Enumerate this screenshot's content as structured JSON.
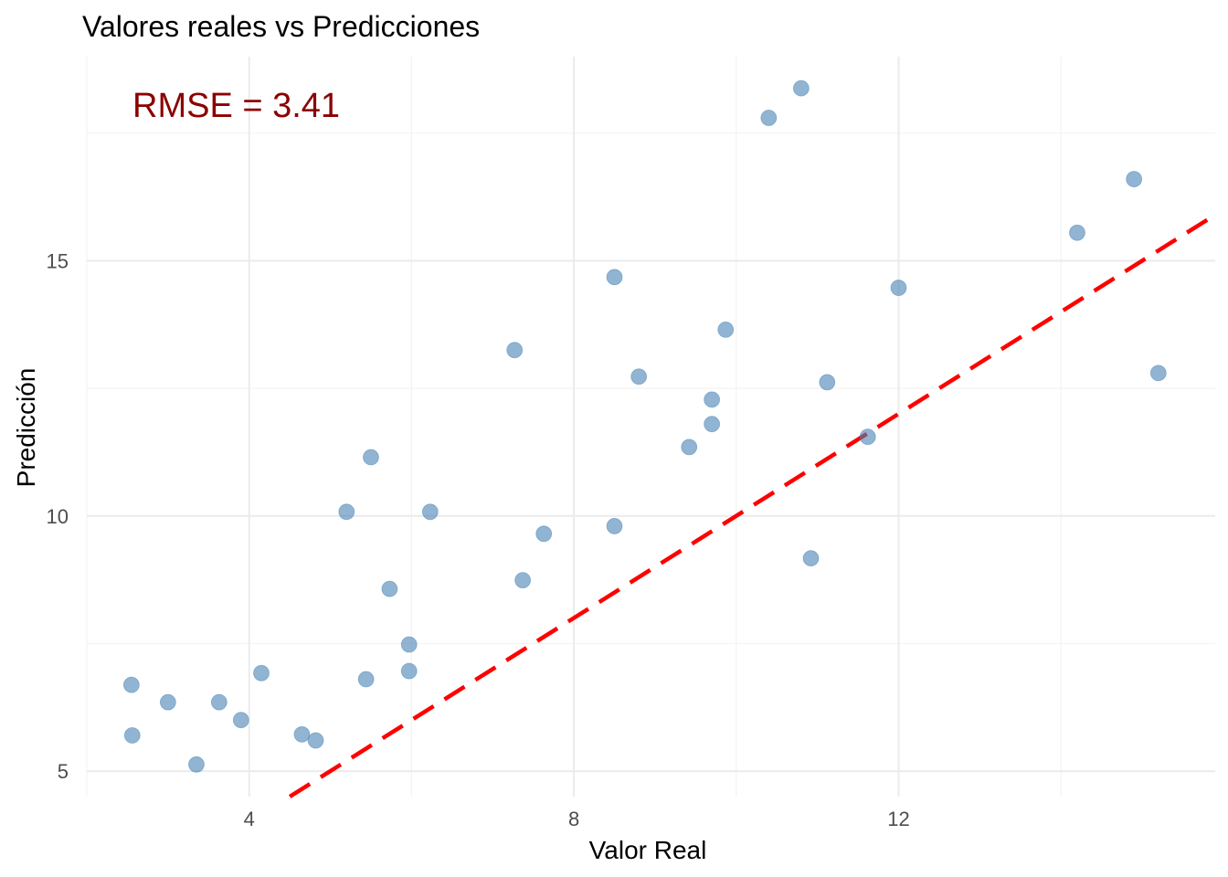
{
  "chart_data": {
    "type": "scatter",
    "title": "Valores reales vs Predicciones",
    "xlabel": "Valor Real",
    "ylabel": "Predicción",
    "xlim": [
      2.0,
      15.9
    ],
    "ylim": [
      4.5,
      19.0
    ],
    "x_ticks": [
      4,
      8,
      12
    ],
    "y_ticks": [
      5,
      10,
      15
    ],
    "grid": true,
    "annotation": {
      "text": "RMSE = 3.41",
      "color": "#8b0000"
    },
    "reference_line": {
      "type": "identity",
      "slope": 1,
      "intercept": 0,
      "color": "#ff0000",
      "style": "dashed"
    },
    "point_color": "#4682b4",
    "series": [
      {
        "x": [
          2.55,
          2.56,
          3.0,
          3.35,
          3.63,
          3.9,
          4.15,
          4.65,
          4.82,
          5.2,
          5.5,
          5.44,
          5.73,
          5.97,
          5.97,
          6.23,
          7.27,
          7.37,
          7.63,
          8.5,
          8.5,
          8.8,
          9.42,
          9.7,
          9.7,
          9.87,
          10.4,
          10.8,
          10.92,
          11.12,
          11.62,
          12.0,
          14.2,
          14.9,
          15.2
        ],
        "y": [
          6.69,
          5.7,
          6.35,
          5.13,
          6.35,
          6.0,
          6.92,
          5.72,
          5.6,
          10.08,
          11.15,
          6.8,
          8.57,
          7.48,
          6.96,
          10.08,
          13.25,
          8.74,
          9.65,
          14.68,
          9.8,
          12.73,
          11.35,
          12.28,
          11.8,
          13.65,
          17.8,
          18.38,
          9.17,
          12.62,
          11.55,
          14.47,
          15.55,
          16.6,
          12.8
        ]
      }
    ]
  }
}
